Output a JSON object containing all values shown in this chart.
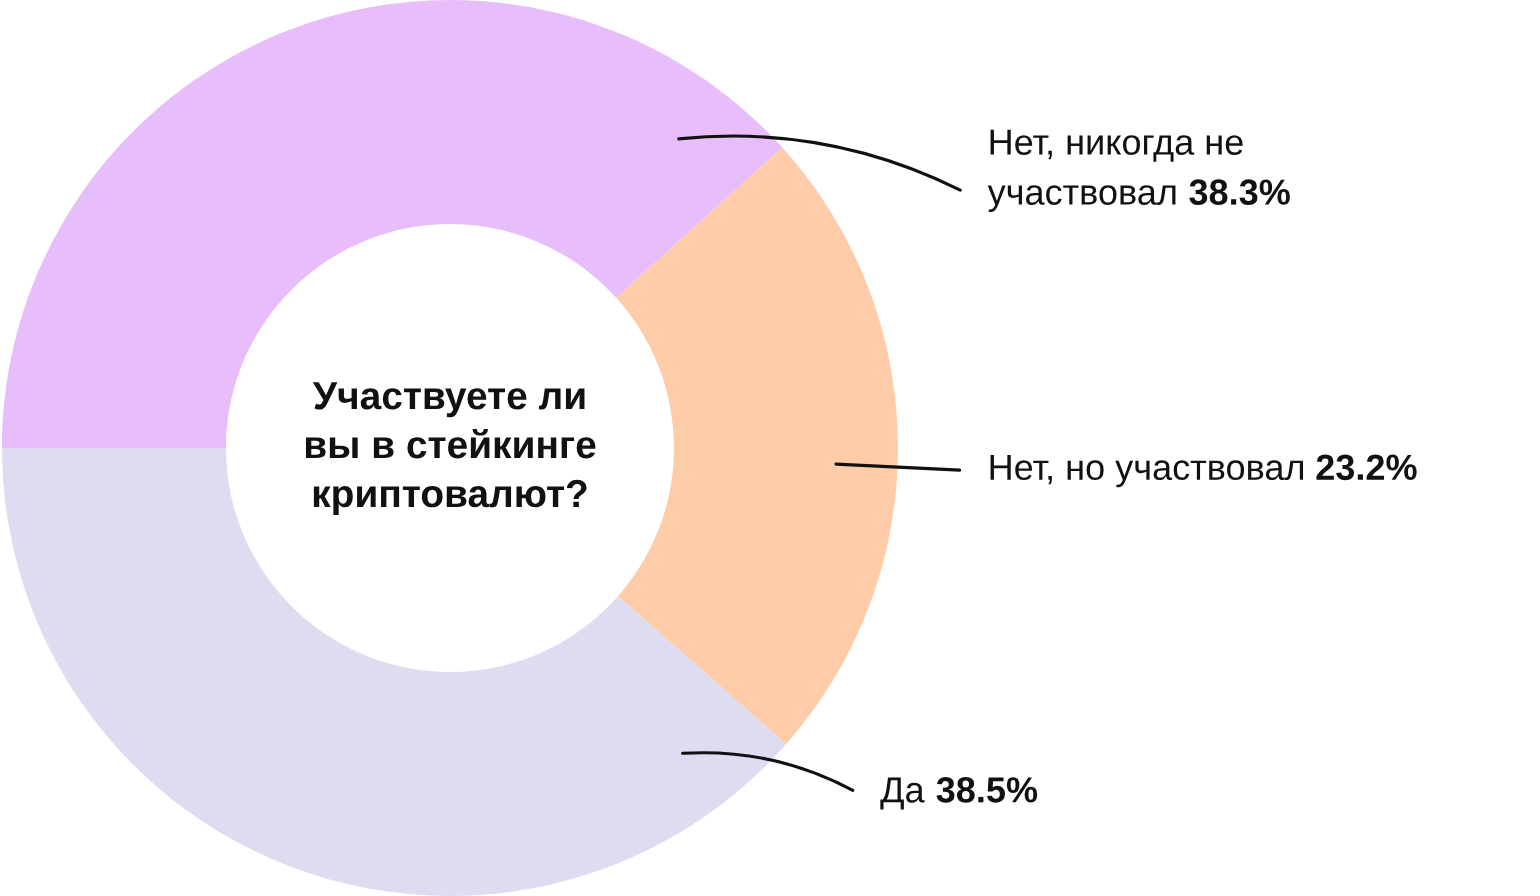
{
  "chart_data": {
    "type": "donut",
    "title": "Участвуете ли\nвы в стейкинге\nкриптовалют?",
    "categories": [
      "Нет, никогда не\nучаствовал",
      "Нет, но участвовал",
      "Да"
    ],
    "values": [
      38.3,
      23.2,
      38.5
    ],
    "colors": [
      "#e8bdfb",
      "#ffcca9",
      "#dedcf1"
    ],
    "value_labels": [
      "38.3%",
      "23.2%",
      "38.5%"
    ]
  }
}
